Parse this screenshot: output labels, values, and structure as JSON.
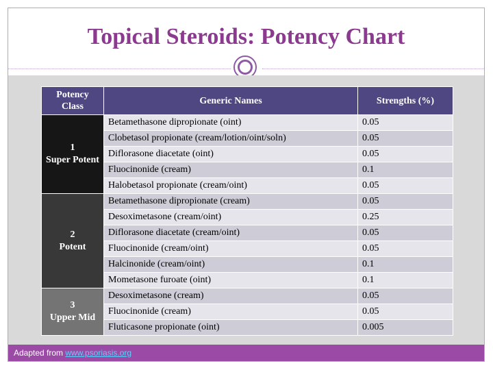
{
  "title": "Topical Steroids: Potency Chart",
  "table": {
    "headers": [
      "Potency Class",
      "Generic Names",
      "Strengths (%)"
    ],
    "groups": [
      {
        "class_number": "1",
        "class_label": "Super Potent",
        "rows": [
          {
            "name": "Betamethasone dipropionate (oint)",
            "strength": "0.05"
          },
          {
            "name": "Clobetasol propionate (cream/lotion/oint/soln)",
            "strength": "0.05"
          },
          {
            "name": "Diflorasone diacetate (oint)",
            "strength": "0.05"
          },
          {
            "name": "Fluocinonide (cream)",
            "strength": "0.1"
          },
          {
            "name": "Halobetasol propionate (cream/oint)",
            "strength": "0.05"
          }
        ]
      },
      {
        "class_number": "2",
        "class_label": "Potent",
        "rows": [
          {
            "name": "Betamethasone dipropionate (cream)",
            "strength": "0.05"
          },
          {
            "name": "Desoximetasone (cream/oint)",
            "strength": "0.25"
          },
          {
            "name": "Diflorasone diacetate (cream/oint)",
            "strength": "0.05"
          },
          {
            "name": "Fluocinonide (cream/oint)",
            "strength": "0.05"
          },
          {
            "name": "Halcinonide (cream/oint)",
            "strength": "0.1"
          },
          {
            "name": "Mometasone furoate (oint)",
            "strength": "0.1"
          }
        ]
      },
      {
        "class_number": "3",
        "class_label": "Upper Mid",
        "rows": [
          {
            "name": "Desoximetasone (cream)",
            "strength": "0.05"
          },
          {
            "name": "Fluocinonide (cream)",
            "strength": "0.05"
          },
          {
            "name": "Fluticasone propionate (oint)",
            "strength": "0.005"
          }
        ]
      }
    ]
  },
  "footer": {
    "prefix": "Adapted from ",
    "link_text": "www.psoriasis.org"
  },
  "colors": {
    "title": "#8b3a8f",
    "header_bg": "#4f4781",
    "footer_bg": "#9b4aa6",
    "class_1_bg": "#161616",
    "class_2_bg": "#383838",
    "class_3_bg": "#747474"
  }
}
